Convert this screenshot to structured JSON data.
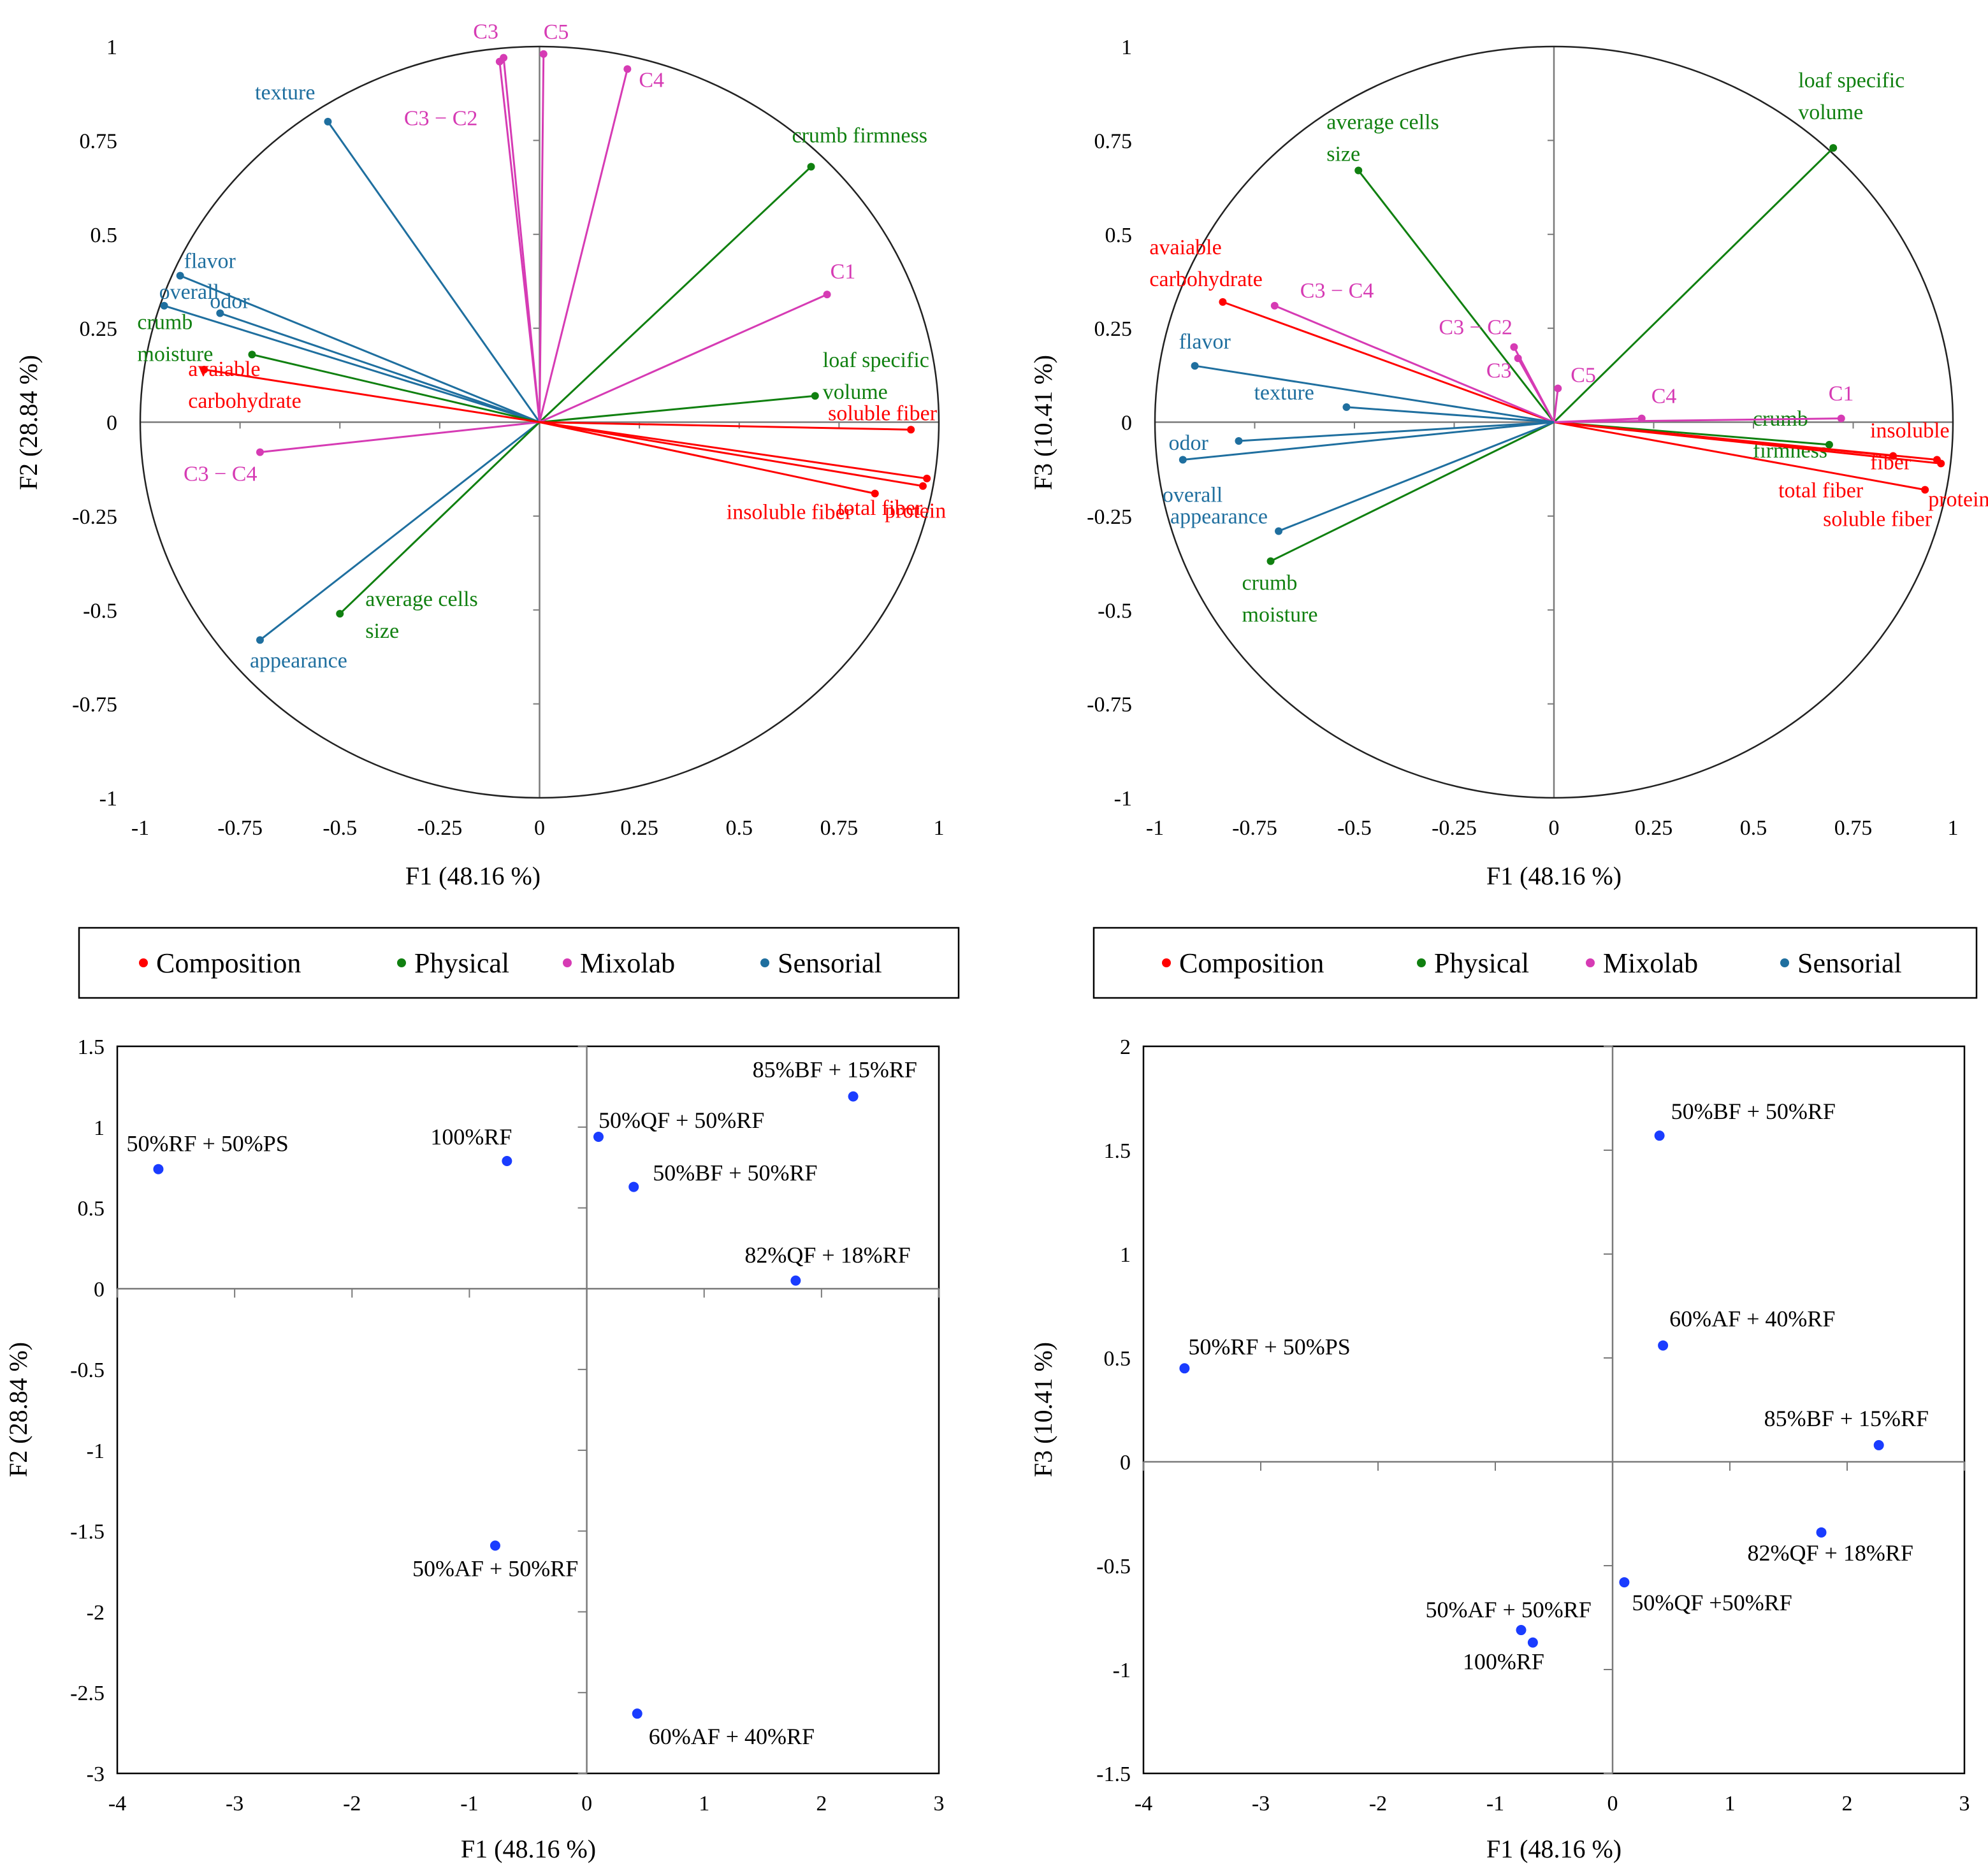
{
  "chart_data": [
    {
      "id": "p1",
      "type": "scatter",
      "subtype": "correlation-circle",
      "xlabel": "F1 (48.16 %)",
      "ylabel": "F2 (28.84 %)",
      "xlim": [
        -1,
        1
      ],
      "ylim": [
        -1,
        1
      ],
      "xticks": [
        "-1",
        "-0.75",
        "-0.5",
        "-0.25",
        "0",
        "0.25",
        "0.5",
        "0.75",
        "1"
      ],
      "yticks": [
        "1",
        "0.75",
        "0.5",
        "0.25",
        "0",
        "-0.25",
        "-0.5",
        "-0.75",
        "-1"
      ],
      "variables": [
        {
          "group": "Sensorial",
          "label": "texture",
          "x": -0.53,
          "y": 0.8
        },
        {
          "group": "Sensorial",
          "label": "flavor",
          "x": -0.9,
          "y": 0.39
        },
        {
          "group": "Sensorial",
          "label": "overall",
          "x": -0.94,
          "y": 0.31
        },
        {
          "group": "Sensorial",
          "label": "odor",
          "x": -0.8,
          "y": 0.29
        },
        {
          "group": "Sensorial",
          "label": "appearance",
          "x": -0.7,
          "y": -0.58
        },
        {
          "group": "Physical",
          "label": "crumb firmness",
          "x": 0.68,
          "y": 0.68
        },
        {
          "group": "Physical",
          "label": "loaf specific volume",
          "x": 0.69,
          "y": 0.07
        },
        {
          "group": "Physical",
          "label": "crumb moisture",
          "x": -0.72,
          "y": 0.18
        },
        {
          "group": "Physical",
          "label": "average cells size",
          "x": -0.5,
          "y": -0.51
        },
        {
          "group": "Mixolab",
          "label": "C3",
          "x": -0.09,
          "y": 0.97
        },
        {
          "group": "Mixolab",
          "label": "C3 − C2",
          "x": -0.1,
          "y": 0.96
        },
        {
          "group": "Mixolab",
          "label": "C5",
          "x": 0.01,
          "y": 0.98
        },
        {
          "group": "Mixolab",
          "label": "C4",
          "x": 0.22,
          "y": 0.94
        },
        {
          "group": "Mixolab",
          "label": "C1",
          "x": 0.72,
          "y": 0.34
        },
        {
          "group": "Mixolab",
          "label": "C3 − C4",
          "x": -0.7,
          "y": -0.08
        },
        {
          "group": "Composition",
          "label": "avaiable carbohydrate",
          "x": -0.84,
          "y": 0.14
        },
        {
          "group": "Composition",
          "label": "soluble fiber",
          "x": 0.93,
          "y": -0.02
        },
        {
          "group": "Composition",
          "label": "total fiber",
          "x": 0.97,
          "y": -0.15
        },
        {
          "group": "Composition",
          "label": "protein",
          "x": 0.96,
          "y": -0.17
        },
        {
          "group": "Composition",
          "label": "insoluble fiber",
          "x": 0.84,
          "y": -0.19
        }
      ]
    },
    {
      "id": "p2",
      "type": "scatter",
      "subtype": "correlation-circle",
      "xlabel": "F1 (48.16 %)",
      "ylabel": "F3 (10.41 %)",
      "xlim": [
        -1,
        1
      ],
      "ylim": [
        -1,
        1
      ],
      "xticks": [
        "-1",
        "-0.75",
        "-0.5",
        "-0.25",
        "0",
        "0.25",
        "0.5",
        "0.75",
        "1"
      ],
      "yticks": [
        "1",
        "0.75",
        "0.5",
        "0.25",
        "0",
        "-0.25",
        "-0.5",
        "-0.75",
        "-1"
      ],
      "variables": [
        {
          "group": "Physical",
          "label": "loaf specific volume",
          "x": 0.7,
          "y": 0.73
        },
        {
          "group": "Physical",
          "label": "average cells size",
          "x": -0.49,
          "y": 0.67
        },
        {
          "group": "Physical",
          "label": "crumb firmness",
          "x": 0.69,
          "y": -0.06
        },
        {
          "group": "Physical",
          "label": "crumb moisture",
          "x": -0.71,
          "y": -0.37
        },
        {
          "group": "Composition",
          "label": "avaiable carbohydrate",
          "x": -0.83,
          "y": 0.32
        },
        {
          "group": "Composition",
          "label": "insoluble fiber",
          "x": 0.96,
          "y": -0.1
        },
        {
          "group": "Composition",
          "label": "total fiber",
          "x": 0.85,
          "y": -0.09
        },
        {
          "group": "Composition",
          "label": "protein",
          "x": 0.97,
          "y": -0.11
        },
        {
          "group": "Composition",
          "label": "soluble fiber",
          "x": 0.93,
          "y": -0.18
        },
        {
          "group": "Mixolab",
          "label": "C3 − C4",
          "x": -0.7,
          "y": 0.31
        },
        {
          "group": "Mixolab",
          "label": "C3 − C2",
          "x": -0.1,
          "y": 0.2
        },
        {
          "group": "Mixolab",
          "label": "C3",
          "x": -0.09,
          "y": 0.17
        },
        {
          "group": "Mixolab",
          "label": "C5",
          "x": 0.01,
          "y": 0.09
        },
        {
          "group": "Mixolab",
          "label": "C4",
          "x": 0.22,
          "y": 0.01
        },
        {
          "group": "Mixolab",
          "label": "C1",
          "x": 0.72,
          "y": 0.01
        },
        {
          "group": "Sensorial",
          "label": "flavor",
          "x": -0.9,
          "y": 0.15
        },
        {
          "group": "Sensorial",
          "label": "texture",
          "x": -0.52,
          "y": 0.04
        },
        {
          "group": "Sensorial",
          "label": "odor",
          "x": -0.79,
          "y": -0.05
        },
        {
          "group": "Sensorial",
          "label": "overall",
          "x": -0.93,
          "y": -0.1
        },
        {
          "group": "Sensorial",
          "label": "appearance",
          "x": -0.69,
          "y": -0.29
        }
      ]
    },
    {
      "id": "p3",
      "type": "scatter",
      "xlabel": "F1 (48.16 %)",
      "ylabel": "F2 (28.84 %)",
      "xlim": [
        -4,
        3
      ],
      "ylim": [
        -3,
        1.5
      ],
      "xticks": [
        "-4",
        "-3",
        "-2",
        "-1",
        "0",
        "1",
        "2",
        "3"
      ],
      "yticks": [
        "1.5",
        "1",
        "0.5",
        "0",
        "-0.5",
        "-1",
        "-1.5",
        "-2",
        "-2.5",
        "-3"
      ],
      "points": [
        {
          "label": "50%RF + 50%PS",
          "x": -3.65,
          "y": 0.74
        },
        {
          "label": "100%RF",
          "x": -0.68,
          "y": 0.79
        },
        {
          "label": "50%QF + 50%RF",
          "x": 0.1,
          "y": 0.94
        },
        {
          "label": "85%BF + 15%RF",
          "x": 2.27,
          "y": 1.19
        },
        {
          "label": "50%BF + 50%RF",
          "x": 0.4,
          "y": 0.63
        },
        {
          "label": "82%QF + 18%RF",
          "x": 1.78,
          "y": 0.05
        },
        {
          "label": "50%AF + 50%RF",
          "x": -0.78,
          "y": -1.59
        },
        {
          "label": "60%AF + 40%RF",
          "x": 0.43,
          "y": -2.63
        }
      ]
    },
    {
      "id": "p4",
      "type": "scatter",
      "xlabel": "F1 (48.16 %)",
      "ylabel": "F3 (10.41 %)",
      "xlim": [
        -4,
        3
      ],
      "ylim": [
        -1.5,
        2
      ],
      "xticks": [
        "-4",
        "-3",
        "-2",
        "-1",
        "0",
        "1",
        "2",
        "3"
      ],
      "yticks": [
        "2",
        "1.5",
        "1",
        "0.5",
        "0",
        "-0.5",
        "-1",
        "-1.5"
      ],
      "points": [
        {
          "label": "50%BF + 50%RF",
          "x": 0.4,
          "y": 1.57
        },
        {
          "label": "60%AF + 40%RF",
          "x": 0.43,
          "y": 0.56
        },
        {
          "label": "50%RF + 50%PS",
          "x": -3.65,
          "y": 0.45
        },
        {
          "label": "85%BF + 15%RF",
          "x": 2.27,
          "y": 0.08
        },
        {
          "label": "82%QF + 18%RF",
          "x": 1.78,
          "y": -0.34
        },
        {
          "label": "50%QF +50%RF",
          "x": 0.1,
          "y": -0.58
        },
        {
          "label": "50%AF + 50%RF",
          "x": -0.78,
          "y": -0.81
        },
        {
          "label": "100%RF",
          "x": -0.68,
          "y": -0.87
        }
      ]
    }
  ],
  "legend": {
    "items": [
      {
        "key": "Composition",
        "label": "Composition",
        "color": "#ff0000"
      },
      {
        "key": "Physical",
        "label": "Physical",
        "color": "#108010"
      },
      {
        "key": "Mixolab",
        "label": "Mixolab",
        "color": "#d63bb4"
      },
      {
        "key": "Sensorial",
        "label": "Sensorial",
        "color": "#1f6f9f"
      }
    ]
  },
  "colors": {
    "Composition": "#ff0000",
    "Physical": "#108010",
    "Mixolab": "#d63bb4",
    "Sensorial": "#1f6f9f",
    "observation": "#1a3cff"
  }
}
